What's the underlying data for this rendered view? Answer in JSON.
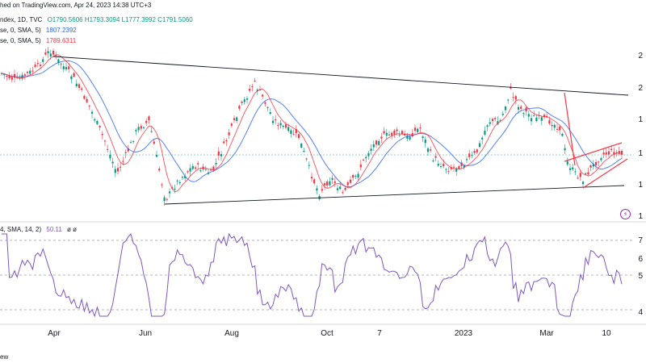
{
  "header": {
    "published": "hed on TradingView.com, Apr 24, 2023 14:38 UTC+3",
    "symbol": "ndex, 1D, TVC",
    "ohlc": "O1790.5606  H1793.3094  L1777.3992  C1791.5060",
    "sma1_label": "se, 0, SMA, 5)",
    "sma1_value": "1807.2392",
    "sma2_label": "se, 0, SMA, 5)",
    "sma2_value": "1789.6311",
    "rsi_label": "4, SMA, 14, 2)",
    "rsi_value": "50.11",
    "rsi_extra": "ø  ø",
    "footer": "ew"
  },
  "colors": {
    "up": "#089981",
    "down": "#f23645",
    "sma_slow": "#2962ff",
    "sma_fast": "#f23645",
    "rsi": "#7e57c2",
    "trend": "#131722",
    "wedge": "#f23645"
  },
  "icons": {
    "lightning": "lightning-icon"
  },
  "chart_data": {
    "type": "candlestick",
    "x_tick_labels": [
      "Apr",
      "Jun",
      "Aug",
      "Oct",
      "7",
      "2023",
      "Mar",
      "10"
    ],
    "y_tick_labels": [
      "2",
      "2",
      "1",
      "1",
      "1",
      "1"
    ],
    "rsi_tick_labels": [
      "7",
      "6",
      "5",
      "4"
    ],
    "trendlines": "upper falling resistance from Apr to Apr; lower rising support from Jun to Apr; red rising wedge Mar–Apr",
    "series": [
      {
        "name": "SMA slow",
        "value": 1807.2392
      },
      {
        "name": "SMA fast",
        "value": 1789.6311
      },
      {
        "name": "RSI",
        "value": 50.11
      }
    ]
  }
}
